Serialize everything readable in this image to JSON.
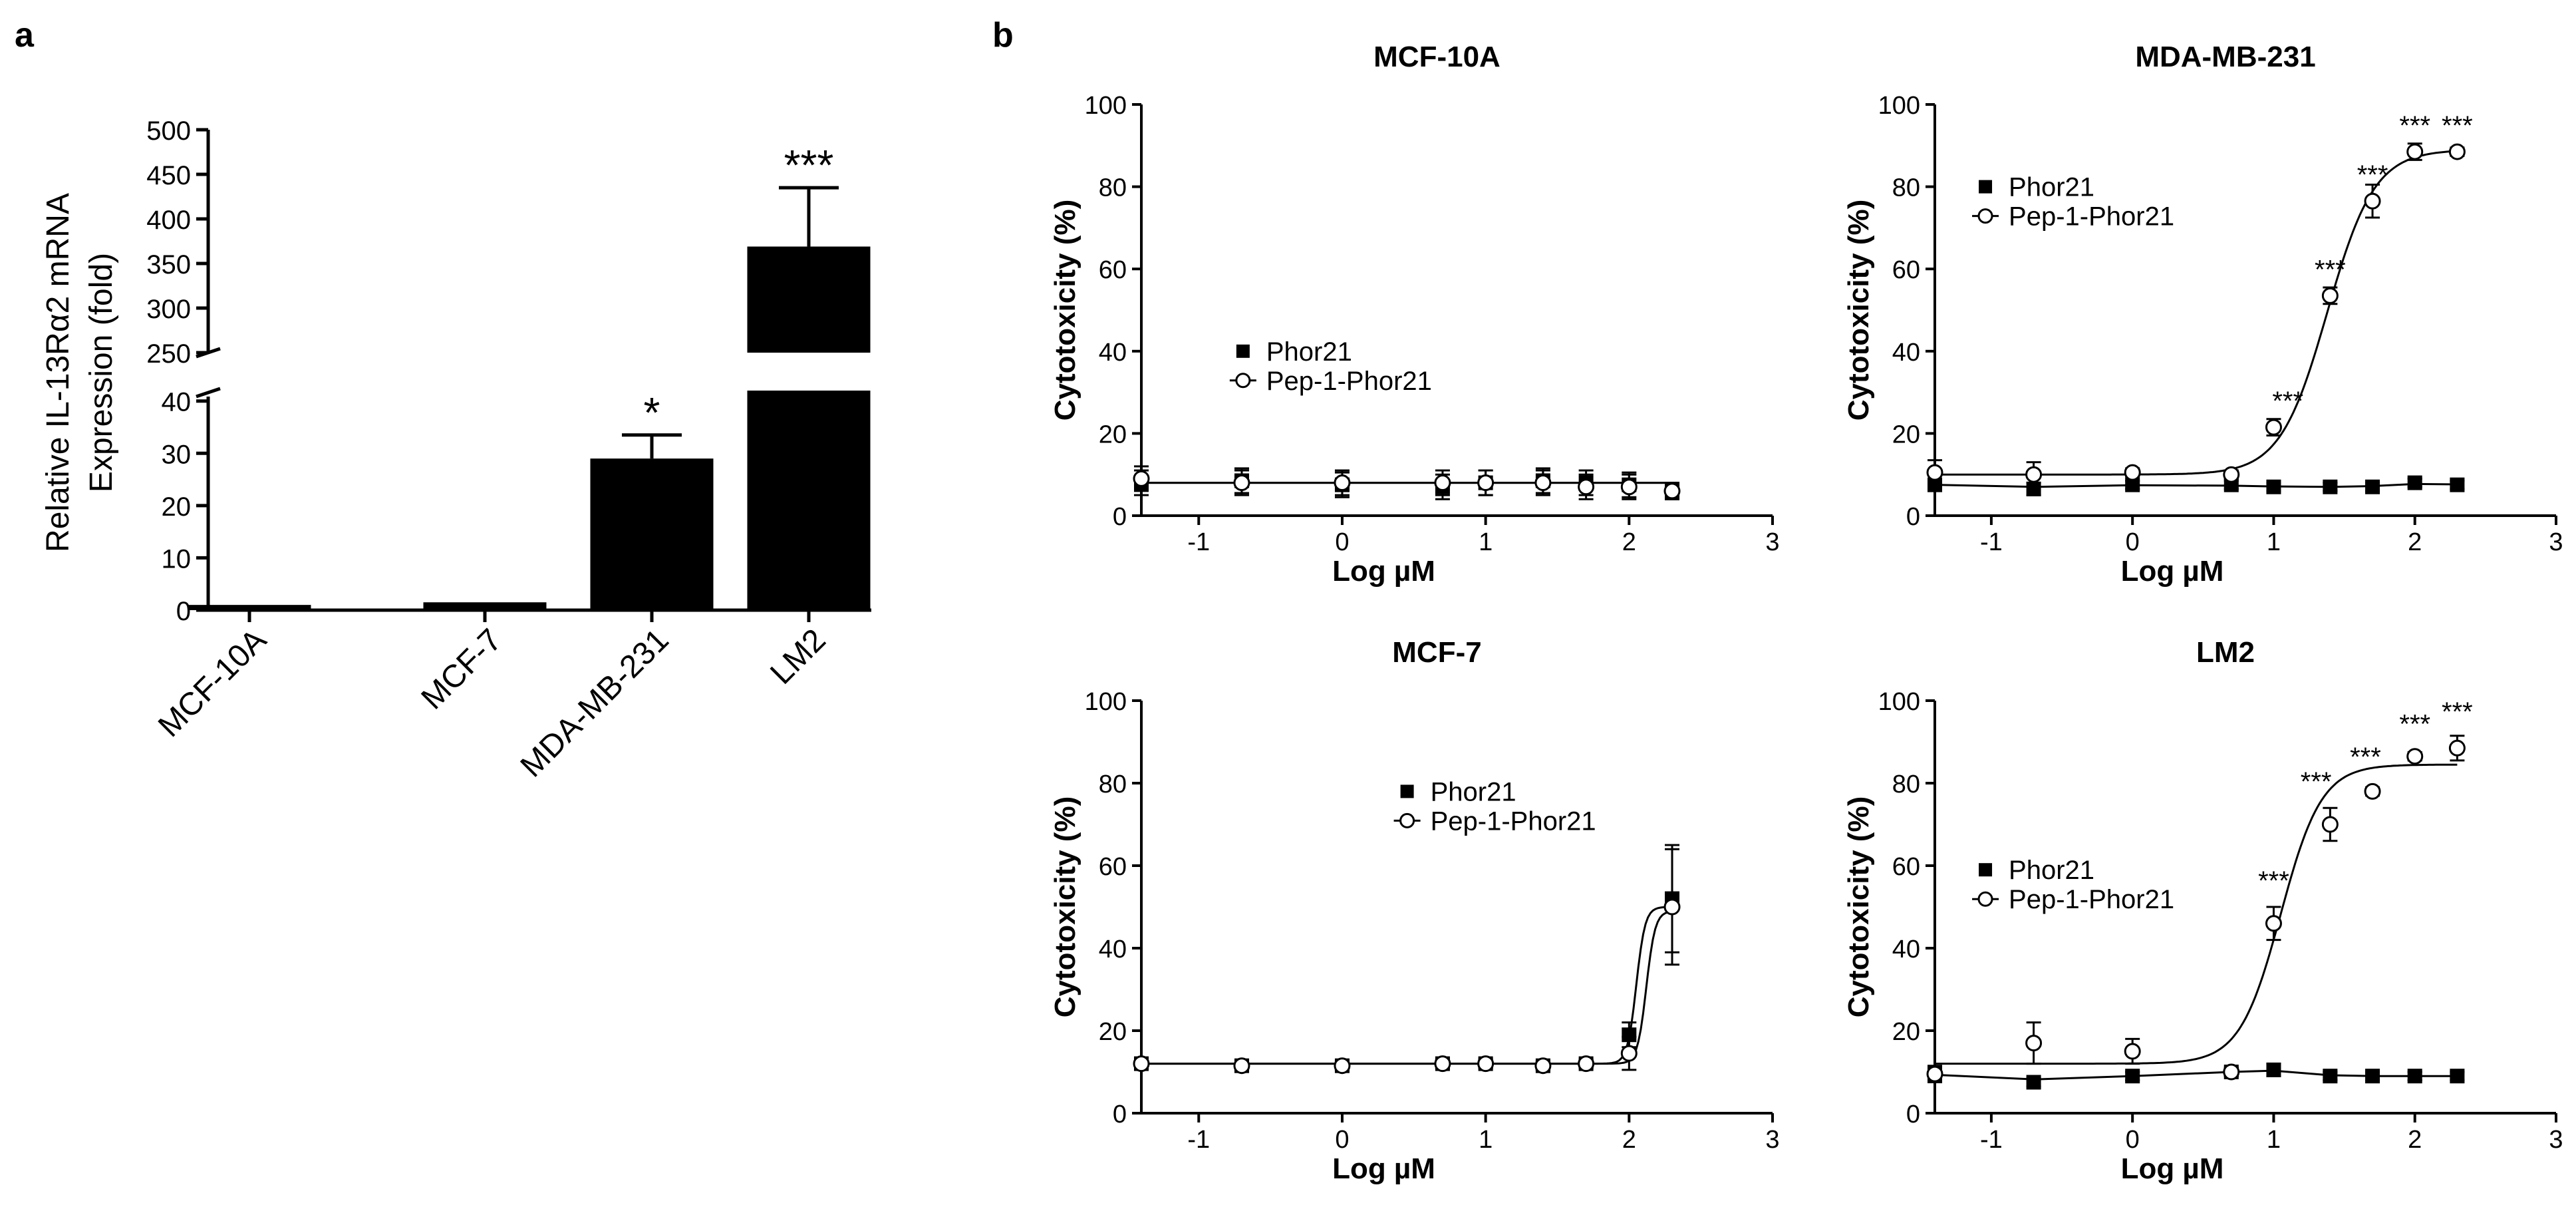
{
  "panel_labels": {
    "a": "a",
    "b": "b"
  },
  "chart_data": [
    {
      "id": "a",
      "type": "bar",
      "ylabel_line1": "Relative IL-13Rα2 mRNA",
      "ylabel_line2": "Expression (fold)",
      "categories": [
        "MCF-10A",
        "MCF-7",
        "MDA-MB-231",
        "LM2"
      ],
      "values": [
        1,
        1.5,
        29,
        369
      ],
      "errors": [
        0.3,
        0.3,
        4.5,
        66
      ],
      "significance": [
        "",
        "",
        "*",
        "***"
      ],
      "axis_break": {
        "lower_range": [
          0,
          42
        ],
        "upper_range": [
          250,
          500
        ],
        "lower_ticks": [
          0,
          10,
          20,
          30,
          40
        ],
        "upper_ticks": [
          250,
          300,
          350,
          400,
          450,
          500
        ]
      }
    },
    {
      "id": "b1",
      "type": "scatter",
      "title": "MCF-10A",
      "xlabel": "Log µM",
      "ylabel": "Cytotoxicity (%)",
      "xlim": [
        -1.4,
        3
      ],
      "ylim": [
        0,
        100
      ],
      "xticks": [
        -1,
        0,
        1,
        2,
        3
      ],
      "yticks": [
        0,
        20,
        40,
        60,
        80,
        100
      ],
      "legend": [
        "Phor21",
        "Pep-1-Phor21"
      ],
      "legend_pos": "middle-left",
      "series": [
        {
          "name": "Phor21",
          "marker": "filled-square",
          "x": [
            -1.4,
            -0.7,
            0,
            0.7,
            1,
            1.4,
            1.7,
            2,
            2.3
          ],
          "y": [
            8,
            8.5,
            7.5,
            7,
            8,
            8.5,
            8,
            7.5,
            6
          ],
          "err": [
            3,
            3,
            3,
            3,
            3,
            3,
            3,
            3,
            2
          ],
          "fit": {
            "kind": "flat",
            "bottom": 8
          }
        },
        {
          "name": "Pep-1-Phor21",
          "marker": "open-circle",
          "x": [
            -1.4,
            -0.7,
            0,
            0.7,
            1,
            1.4,
            1.7,
            2,
            2.3
          ],
          "y": [
            9,
            8,
            8,
            8,
            8,
            8,
            7,
            7,
            6
          ],
          "err": [
            3,
            3,
            3,
            3,
            3,
            3,
            3,
            3,
            2
          ],
          "fit": {
            "kind": "flat",
            "bottom": 8
          }
        }
      ],
      "significance": []
    },
    {
      "id": "b2",
      "type": "scatter",
      "title": "MDA-MB-231",
      "xlabel": "Log µM",
      "ylabel": "Cytotoxicity (%)",
      "xlim": [
        -1.4,
        3
      ],
      "ylim": [
        0,
        100
      ],
      "xticks": [
        -1,
        0,
        1,
        2,
        3
      ],
      "yticks": [
        0,
        20,
        40,
        60,
        80,
        100
      ],
      "legend": [
        "Phor21",
        "Pep-1-Phor21"
      ],
      "legend_pos": "top-left",
      "series": [
        {
          "name": "Phor21",
          "marker": "filled-square",
          "x": [
            -1.4,
            -0.7,
            0,
            0.7,
            1,
            1.4,
            1.7,
            2,
            2.3
          ],
          "y": [
            7.5,
            6.5,
            7.5,
            7.5,
            7,
            7,
            7,
            8,
            7.5
          ],
          "err": [
            1.5,
            1.5,
            1,
            1,
            1,
            1,
            1,
            1,
            1
          ],
          "fit": {
            "kind": "poly",
            "x": [
              -1.4,
              -0.7,
              0,
              0.7,
              1,
              1.4,
              1.7,
              2,
              2.3
            ],
            "y": [
              7.5,
              7,
              7.4,
              7.3,
              7.1,
              7,
              7.2,
              7.7,
              7.6
            ]
          }
        },
        {
          "name": "Pep-1-Phor21",
          "marker": "open-circle",
          "x": [
            -1.4,
            -0.7,
            0,
            0.7,
            1,
            1.4,
            1.7,
            2,
            2.3
          ],
          "y": [
            10.5,
            10,
            10.5,
            10,
            21.5,
            53.5,
            76.5,
            88.5,
            88.5
          ],
          "err": [
            3,
            3,
            1,
            1,
            2,
            2,
            4,
            2,
            1
          ],
          "fit": {
            "kind": "sigmoid",
            "bottom": 10,
            "top": 89,
            "logec50": 1.38,
            "hill": 2.6
          }
        }
      ],
      "significance": [
        {
          "x": 1.1,
          "y": 21.5,
          "text": "***"
        },
        {
          "x": 1.4,
          "y": 53.5,
          "text": "***"
        },
        {
          "x": 1.7,
          "y": 76.5,
          "text": "***"
        },
        {
          "x": 2.0,
          "y": 88.5,
          "text": "***"
        },
        {
          "x": 2.3,
          "y": 88.5,
          "text": "***"
        }
      ]
    },
    {
      "id": "b3",
      "type": "scatter",
      "title": "MCF-7",
      "xlabel": "Log µM",
      "ylabel": "Cytotoxicity (%)",
      "xlim": [
        -1.4,
        3
      ],
      "ylim": [
        0,
        100
      ],
      "xticks": [
        -1,
        0,
        1,
        2,
        3
      ],
      "yticks": [
        0,
        20,
        40,
        60,
        80,
        100
      ],
      "legend": [
        "Phor21",
        "Pep-1-Phor21"
      ],
      "legend_pos": "center-right",
      "series": [
        {
          "name": "Phor21",
          "marker": "filled-square",
          "x": [
            -1.4,
            -0.7,
            0,
            0.7,
            1,
            1.4,
            1.7,
            2,
            2.3
          ],
          "y": [
            12,
            11.5,
            11.5,
            12,
            12,
            11.5,
            12,
            19,
            52
          ],
          "err": [
            1,
            1,
            1,
            1,
            1,
            1,
            1,
            3,
            13
          ],
          "fit": {
            "kind": "sigmoid",
            "bottom": 12,
            "top": 50,
            "logec50": 2.05,
            "hill": 14
          }
        },
        {
          "name": "Pep-1-Phor21",
          "marker": "open-circle",
          "x": [
            -1.4,
            -0.7,
            0,
            0.7,
            1,
            1.4,
            1.7,
            2,
            2.3
          ],
          "y": [
            12,
            11.5,
            11.5,
            12,
            12,
            11.5,
            12,
            14.5,
            50
          ],
          "err": [
            1,
            1,
            1,
            1,
            1,
            1,
            1,
            4,
            14
          ],
          "fit": {
            "kind": "sigmoid",
            "bottom": 12,
            "top": 49,
            "logec50": 2.12,
            "hill": 14
          }
        }
      ],
      "significance": []
    },
    {
      "id": "b4",
      "type": "scatter",
      "title": "LM2",
      "xlabel": "Log µM",
      "ylabel": "Cytotoxicity (%)",
      "xlim": [
        -1.4,
        3
      ],
      "ylim": [
        0,
        100
      ],
      "xticks": [
        -1,
        0,
        1,
        2,
        3
      ],
      "yticks": [
        0,
        20,
        40,
        60,
        80,
        100
      ],
      "legend": [
        "Phor21",
        "Pep-1-Phor21"
      ],
      "legend_pos": "bottom-left",
      "series": [
        {
          "name": "Phor21",
          "marker": "filled-square",
          "x": [
            -1.4,
            -0.7,
            0,
            0.7,
            1,
            1.4,
            1.7,
            2,
            2.3
          ],
          "y": [
            9.5,
            7.5,
            9,
            10,
            10.5,
            9,
            9,
            9,
            9
          ],
          "err": [
            1.5,
            1,
            1,
            1,
            1.5,
            1,
            1,
            1,
            1
          ],
          "fit": {
            "kind": "poly",
            "x": [
              -1.4,
              -0.7,
              0,
              0.7,
              1,
              1.4,
              1.7,
              2,
              2.3
            ],
            "y": [
              9.3,
              8.2,
              9,
              10,
              10.3,
              9.2,
              9,
              9,
              9
            ]
          }
        },
        {
          "name": "Pep-1-Phor21",
          "marker": "open-circle",
          "x": [
            -1.4,
            -0.7,
            0,
            0.7,
            1,
            1.4,
            1.7,
            2,
            2.3
          ],
          "y": [
            9.5,
            17,
            15,
            10,
            46,
            70,
            78,
            86.5,
            88.5
          ],
          "err": [
            2,
            5,
            3,
            1,
            4,
            4,
            1,
            1,
            3
          ],
          "fit": {
            "kind": "sigmoid",
            "bottom": 12,
            "top": 84.5,
            "logec50": 1.05,
            "hill": 3.0
          }
        }
      ],
      "significance": [
        {
          "x": 1.0,
          "y": 50,
          "text": "***"
        },
        {
          "x": 1.3,
          "y": 74,
          "text": "***"
        },
        {
          "x": 1.65,
          "y": 80,
          "text": "***"
        },
        {
          "x": 2.0,
          "y": 88,
          "text": "***"
        },
        {
          "x": 2.3,
          "y": 91,
          "text": "***"
        }
      ]
    }
  ]
}
